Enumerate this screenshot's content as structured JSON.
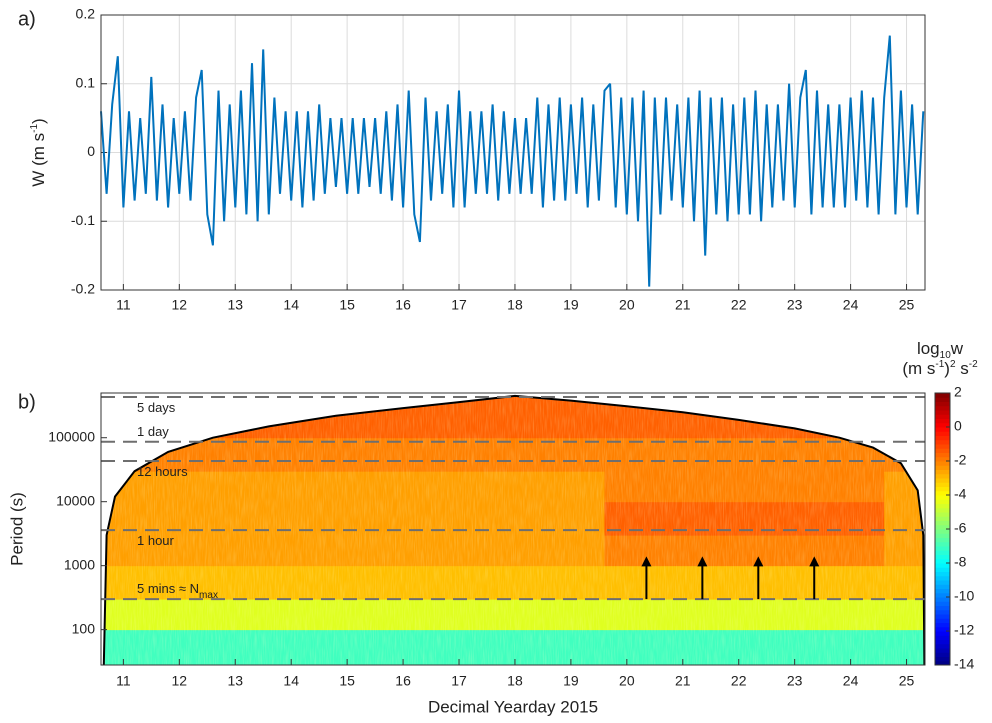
{
  "chart_data": [
    {
      "type": "line",
      "panel_label": "a)",
      "y_label": [
        "W (m s",
        "-1",
        ")"
      ],
      "color": "#0072bd",
      "grid": true,
      "xlim": [
        10.6,
        25.33
      ],
      "xticks": [
        11,
        12,
        13,
        14,
        15,
        16,
        17,
        18,
        19,
        20,
        21,
        22,
        23,
        24,
        25
      ],
      "ylim": [
        -0.2,
        0.2
      ],
      "yticks": [
        -0.2,
        -0.1,
        0,
        0.1,
        0.2
      ],
      "x": [
        10.6,
        10.7,
        10.8,
        10.9,
        11.0,
        11.1,
        11.2,
        11.3,
        11.4,
        11.5,
        11.6,
        11.7,
        11.8,
        11.9,
        12.0,
        12.1,
        12.2,
        12.3,
        12.4,
        12.5,
        12.6,
        12.7,
        12.8,
        12.9,
        13.0,
        13.1,
        13.2,
        13.3,
        13.4,
        13.5,
        13.6,
        13.7,
        13.8,
        13.9,
        14.0,
        14.1,
        14.2,
        14.3,
        14.4,
        14.5,
        14.6,
        14.7,
        14.8,
        14.9,
        15.0,
        15.1,
        15.2,
        15.3,
        15.4,
        15.5,
        15.6,
        15.7,
        15.8,
        15.9,
        16.0,
        16.1,
        16.2,
        16.3,
        16.4,
        16.5,
        16.6,
        16.7,
        16.8,
        16.9,
        17.0,
        17.1,
        17.2,
        17.3,
        17.4,
        17.5,
        17.6,
        17.7,
        17.8,
        17.9,
        18.0,
        18.1,
        18.2,
        18.3,
        18.4,
        18.5,
        18.6,
        18.7,
        18.8,
        18.9,
        19.0,
        19.1,
        19.2,
        19.3,
        19.4,
        19.5,
        19.6,
        19.7,
        19.8,
        19.9,
        20.0,
        20.1,
        20.2,
        20.3,
        20.4,
        20.5,
        20.6,
        20.7,
        20.8,
        20.9,
        21.0,
        21.1,
        21.2,
        21.3,
        21.4,
        21.5,
        21.6,
        21.7,
        21.8,
        21.9,
        22.0,
        22.1,
        22.2,
        22.3,
        22.4,
        22.5,
        22.6,
        22.7,
        22.8,
        22.9,
        23.0,
        23.1,
        23.2,
        23.3,
        23.4,
        23.5,
        23.6,
        23.7,
        23.8,
        23.9,
        24.0,
        24.1,
        24.2,
        24.3,
        24.4,
        24.5,
        24.6,
        24.7,
        24.8,
        24.9,
        25.0,
        25.1,
        25.2,
        25.3
      ],
      "values": [
        0.06,
        -0.06,
        0.07,
        0.14,
        -0.08,
        0.06,
        -0.07,
        0.05,
        -0.06,
        0.11,
        -0.07,
        0.07,
        -0.08,
        0.05,
        -0.06,
        0.06,
        -0.07,
        0.08,
        0.12,
        -0.09,
        -0.135,
        0.09,
        -0.1,
        0.07,
        -0.08,
        0.09,
        -0.09,
        0.13,
        -0.1,
        0.15,
        -0.09,
        0.08,
        -0.06,
        0.06,
        -0.07,
        0.06,
        -0.08,
        0.06,
        -0.07,
        0.07,
        -0.06,
        0.05,
        -0.05,
        0.05,
        -0.06,
        0.05,
        -0.06,
        0.05,
        -0.05,
        0.05,
        -0.06,
        0.06,
        -0.07,
        0.07,
        -0.08,
        0.09,
        -0.09,
        -0.13,
        0.08,
        -0.07,
        0.06,
        -0.06,
        0.07,
        -0.08,
        0.09,
        -0.08,
        0.06,
        -0.06,
        0.06,
        -0.06,
        0.07,
        -0.07,
        0.06,
        -0.06,
        0.05,
        -0.06,
        0.05,
        -0.06,
        0.08,
        -0.08,
        0.07,
        -0.07,
        0.08,
        -0.07,
        0.07,
        -0.06,
        0.08,
        -0.08,
        0.07,
        -0.07,
        0.09,
        0.1,
        -0.08,
        0.08,
        -0.09,
        0.08,
        -0.1,
        0.09,
        -0.195,
        0.08,
        -0.09,
        0.08,
        -0.07,
        0.07,
        -0.08,
        0.08,
        -0.1,
        0.09,
        -0.15,
        0.08,
        -0.09,
        0.08,
        -0.1,
        0.07,
        -0.09,
        0.08,
        -0.09,
        0.09,
        -0.1,
        0.07,
        -0.08,
        0.07,
        -0.07,
        0.1,
        -0.08,
        0.08,
        0.12,
        -0.09,
        0.09,
        -0.08,
        0.07,
        -0.08,
        0.07,
        -0.08,
        0.08,
        -0.07,
        0.09,
        -0.08,
        0.08,
        -0.09,
        0.08,
        0.17,
        -0.09,
        0.09,
        -0.08,
        0.07,
        -0.09,
        0.06
      ]
    },
    {
      "type": "heatmap",
      "panel_label": "b)",
      "y_label": "Period (s)",
      "x_label": "Decimal Yearday 2015",
      "y_log": true,
      "xlim": [
        10.6,
        25.33
      ],
      "xticks": [
        11,
        12,
        13,
        14,
        15,
        16,
        17,
        18,
        19,
        20,
        21,
        22,
        23,
        24,
        25
      ],
      "ylim": [
        28,
        500000
      ],
      "yticks": [
        100,
        1000,
        10000,
        100000
      ],
      "x_edges": [
        10.6,
        11.6,
        12.6,
        13.6,
        14.6,
        15.6,
        16.6,
        17.6,
        18.6,
        19.6,
        20.6,
        21.6,
        22.6,
        23.6,
        24.6,
        25.33
      ],
      "period_edges": [
        28,
        100,
        300,
        1000,
        3000,
        10000,
        30000,
        100000,
        500000
      ],
      "matrix": [
        [
          -7,
          -7,
          -7,
          -7,
          -7,
          -7,
          -7,
          -7,
          -7,
          -7,
          -7,
          -7,
          -7,
          -7,
          -7
        ],
        [
          -4.5,
          -4.5,
          -4.5,
          -4.5,
          -4.5,
          -4.5,
          -4.5,
          -4.5,
          -4.5,
          -4.5,
          -4.5,
          -4.5,
          -4.5,
          -4.5,
          -4.5
        ],
        [
          -3,
          -3,
          -3,
          -3,
          -3,
          -3,
          -3,
          -3,
          -3,
          -3,
          -3,
          -3,
          -3,
          -3,
          -3
        ],
        [
          -2.5,
          -2.5,
          -2.5,
          -2.5,
          -2.5,
          -2.5,
          -2.5,
          -2.5,
          -2.5,
          -2,
          -2,
          -2,
          -2,
          -2,
          -2.5
        ],
        [
          -2.5,
          -2.5,
          -2.5,
          -2.5,
          -2.5,
          -2.5,
          -2.5,
          -2.5,
          -2.5,
          -1.5,
          -1.5,
          -1.5,
          -1.5,
          -1.5,
          -2.5
        ],
        [
          -2.5,
          -2.5,
          -2.5,
          -2.5,
          -2.5,
          -2.5,
          -2.5,
          -2.5,
          -2.5,
          -2,
          -2,
          -2,
          -2,
          -2,
          -2.5
        ],
        [
          -2,
          -2,
          -2,
          -2,
          -2,
          -2,
          -2,
          -2,
          -2,
          -2,
          -2,
          -2,
          -2,
          -2,
          -2
        ],
        [
          -1.5,
          -1.5,
          -1.5,
          -1.5,
          -1.5,
          -1.5,
          -1.5,
          -1.5,
          -1.5,
          -1.5,
          -1.5,
          -1.5,
          -1.5,
          -1.5,
          -1.5
        ]
      ],
      "coi": {
        "x": [
          10.65,
          10.7,
          10.85,
          11.2,
          11.8,
          12.6,
          13.6,
          14.8,
          16,
          17,
          18,
          19,
          20,
          21,
          22,
          23,
          23.8,
          24.4,
          24.9,
          25.2,
          25.3,
          25.32
        ],
        "period": [
          28,
          3000,
          12000,
          30000,
          60000,
          100000,
          150000,
          220000,
          290000,
          360000,
          450000,
          380000,
          310000,
          250000,
          190000,
          140000,
          100000,
          70000,
          40000,
          15000,
          3000,
          28
        ]
      },
      "hlines": [
        {
          "value": 432000,
          "label": [
            "5 days"
          ]
        },
        {
          "value": 86400,
          "label": [
            "1 day"
          ]
        },
        {
          "value": 43200,
          "label": [
            "12 hours"
          ]
        },
        {
          "value": 3600,
          "label": [
            "1 hour"
          ]
        },
        {
          "value": 300,
          "label": [
            "5 mins ≈ N",
            "max"
          ]
        }
      ],
      "arrows": {
        "x": [
          20.35,
          21.35,
          22.35,
          23.35
        ],
        "from": 300,
        "to": 1300
      },
      "clim": [
        -14,
        2
      ],
      "cticks": [
        -14,
        -12,
        -10,
        -8,
        -6,
        -4,
        -2,
        0,
        2
      ],
      "colorbar_label": [
        [
          "log",
          "10",
          "w"
        ],
        [
          "(m s",
          "-1",
          ")",
          "2",
          " s",
          "-2"
        ]
      ]
    }
  ]
}
